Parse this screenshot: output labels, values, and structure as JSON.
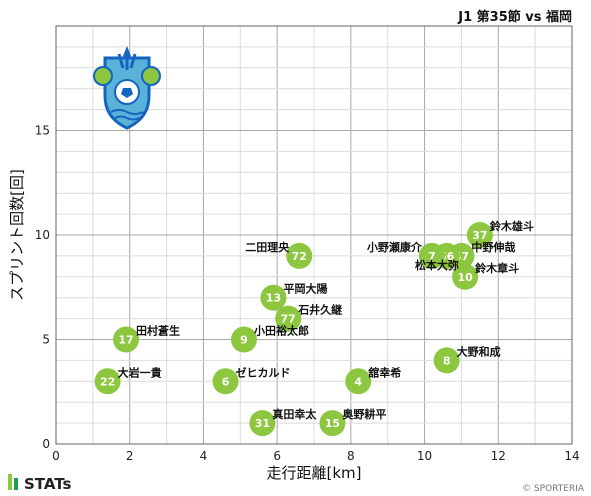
{
  "header": {
    "title": "J1 第35節 vs 福岡"
  },
  "footer": {
    "brand": "STATs",
    "copyright": "© SPORTERIA"
  },
  "colors": {
    "point": "#8DC63F",
    "grid_major": "#a8a8a8",
    "grid_minor": "#dcdcdc",
    "team_primary": "#1565C0",
    "team_accent": "#5BB2D9"
  },
  "logo": {
    "icon": "shonan-bellmare-crest-icon"
  },
  "chart_data": {
    "type": "scatter",
    "title": "J1 第35節 vs 福岡",
    "xlabel": "走行距離[km]",
    "ylabel": "スプリント回数[回]",
    "xlim": [
      0,
      14
    ],
    "ylim": [
      0,
      20
    ],
    "xticks": [
      0,
      2,
      4,
      6,
      8,
      10,
      12,
      14
    ],
    "yticks": [
      0,
      5,
      10,
      15
    ],
    "grid": true,
    "points": [
      {
        "number": "37",
        "name": "鈴木雄斗",
        "x": 11.5,
        "y": 10
      },
      {
        "number": "47",
        "name": "中野伸哉",
        "x": 11.0,
        "y": 9
      },
      {
        "number": "66",
        "name": "",
        "x": 10.6,
        "y": 9
      },
      {
        "number": "7",
        "name": "小野瀬康介",
        "x": 10.2,
        "y": 9
      },
      {
        "number": "",
        "name": "松本大弥",
        "x": 10.2,
        "y": 9
      },
      {
        "number": "10",
        "name": "鈴木章斗",
        "x": 11.1,
        "y": 8
      },
      {
        "number": "72",
        "name": "二田理央",
        "x": 6.6,
        "y": 9
      },
      {
        "number": "13",
        "name": "平岡大陽",
        "x": 5.9,
        "y": 7
      },
      {
        "number": "77",
        "name": "石井久継",
        "x": 6.3,
        "y": 6
      },
      {
        "number": "9",
        "name": "小田裕太郎",
        "x": 5.1,
        "y": 5
      },
      {
        "number": "17",
        "name": "田村蒼生",
        "x": 1.9,
        "y": 5
      },
      {
        "number": "8",
        "name": "大野和成",
        "x": 10.6,
        "y": 4
      },
      {
        "number": "22",
        "name": "大岩一貴",
        "x": 1.4,
        "y": 3
      },
      {
        "number": "6",
        "name": "ゼヒカルド",
        "x": 4.6,
        "y": 3
      },
      {
        "number": "4",
        "name": "舘幸希",
        "x": 8.2,
        "y": 3
      },
      {
        "number": "31",
        "name": "真田幸太",
        "x": 5.6,
        "y": 1
      },
      {
        "number": "15",
        "name": "奥野耕平",
        "x": 7.5,
        "y": 1
      }
    ]
  }
}
